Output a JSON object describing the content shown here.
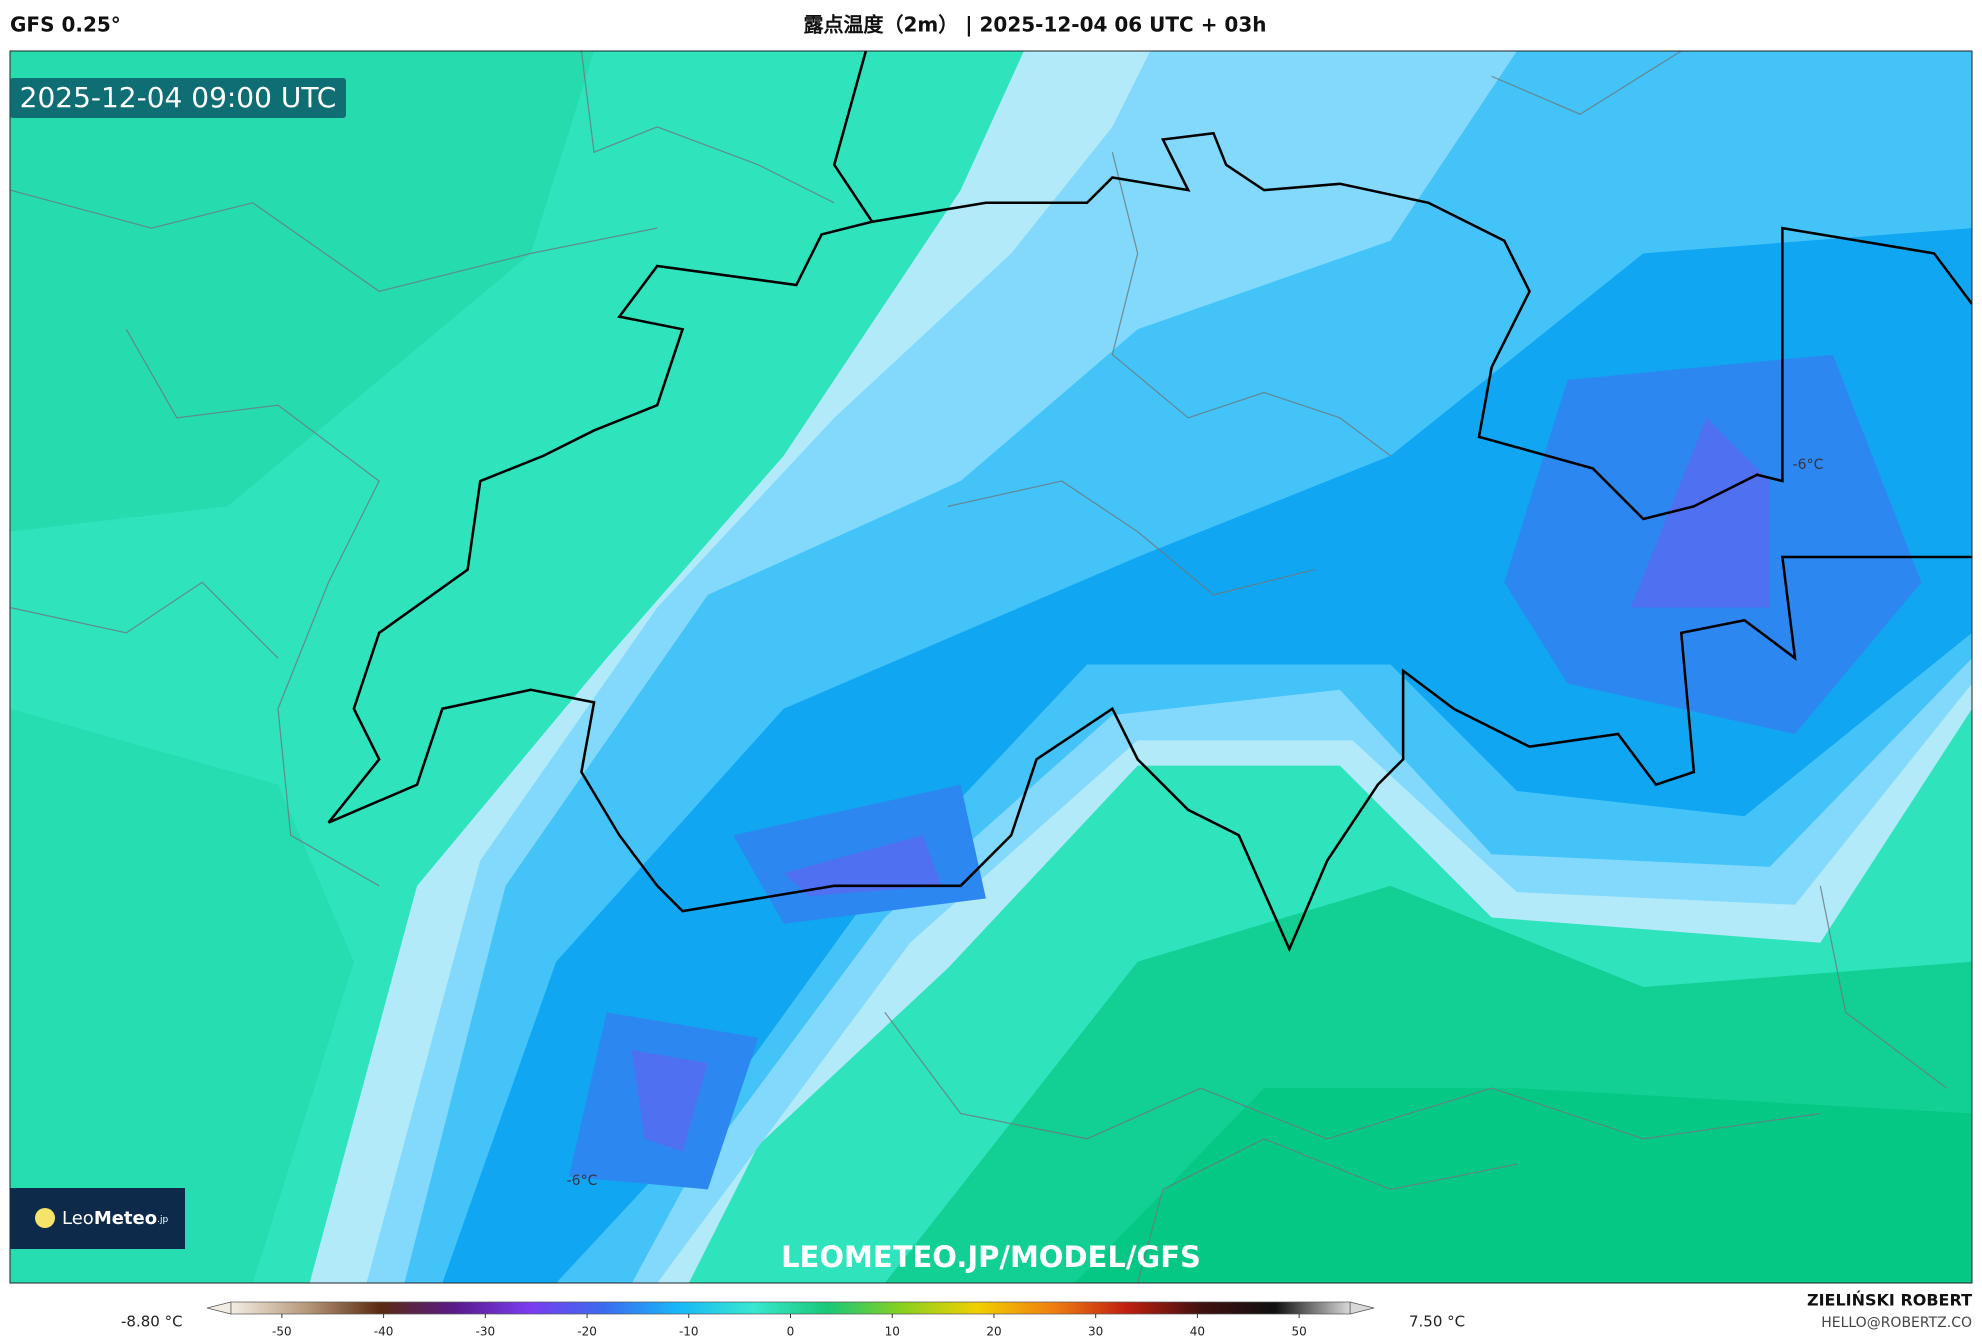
{
  "header": {
    "model": "GFS 0.25°",
    "title": "露点温度（2m） | 2025-12-04 06 UTC + 03h"
  },
  "map": {
    "valid_time": "2025-12-04 09:00 UTC",
    "labels": [
      "-6°C",
      "-6°C"
    ],
    "logo": [
      "Leo",
      "Meteo",
      ".jp"
    ],
    "watermark": "LEOMETEO.JP/MODEL/GFS"
  },
  "legend": {
    "min_label": "-8.80 °C",
    "max_label": "7.50 °C",
    "range": [
      -55,
      55
    ],
    "ticks": [
      -50,
      -40,
      -30,
      -20,
      -10,
      0,
      10,
      20,
      30,
      40,
      50
    ],
    "colors": [
      "#f2ede2",
      "#b89a7c",
      "#5a2a10",
      "#5a1a8a",
      "#7a3cf0",
      "#3a6cf0",
      "#18b8f8",
      "#38e8d0",
      "#18c878",
      "#8ad020",
      "#f0d000",
      "#f08010",
      "#c02010",
      "#401010",
      "#101010",
      "#d8d8d8"
    ]
  },
  "credit": {
    "author": "ZIELIŃSKI ROBERT",
    "email": "HELLO@ROBERTZ.CO"
  }
}
